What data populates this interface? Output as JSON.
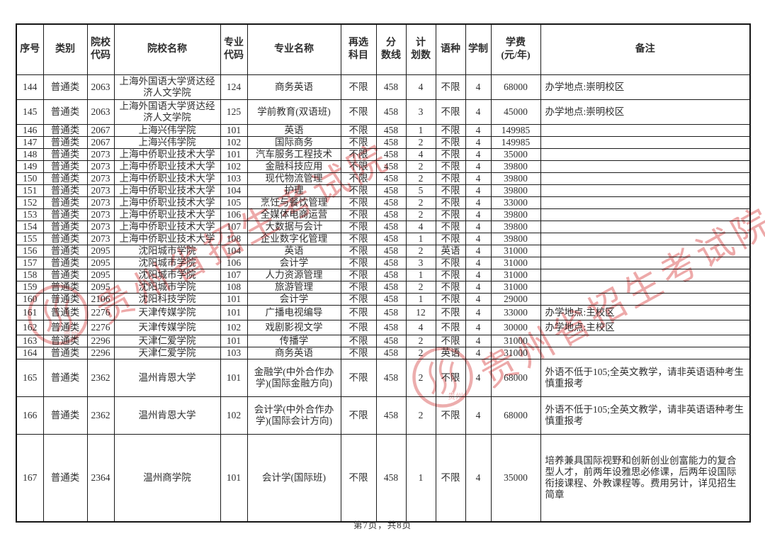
{
  "document": {
    "footer": {
      "page_indicator": "第7页，共8页"
    },
    "watermark": {
      "text": "贵州省招生考试院",
      "seal_label": "贵州",
      "color": "#dd5a5a"
    }
  },
  "table": {
    "headers": [
      "序号",
      "类别",
      "院校\n代码",
      "院校名称",
      "专业\n代码",
      "专业名称",
      "再选\n科目",
      "分\n数线",
      "计\n划数",
      "语种",
      "学制",
      "学费\n(元/年)",
      "备注"
    ],
    "rows": [
      [
        "144",
        "普通类",
        "2063",
        "上海外国语大学贤达经济人文学院",
        "124",
        "商务英语",
        "不限",
        "458",
        "4",
        "不限",
        "4",
        "68000",
        "办学地点:崇明校区"
      ],
      [
        "145",
        "普通类",
        "2063",
        "上海外国语大学贤达经济人文学院",
        "125",
        "学前教育(双语班)",
        "不限",
        "458",
        "3",
        "不限",
        "4",
        "45000",
        "办学地点:崇明校区"
      ],
      [
        "146",
        "普通类",
        "2067",
        "上海兴伟学院",
        "101",
        "英语",
        "不限",
        "458",
        "1",
        "不限",
        "4",
        "149985",
        ""
      ],
      [
        "147",
        "普通类",
        "2067",
        "上海兴伟学院",
        "102",
        "国际商务",
        "不限",
        "458",
        "2",
        "不限",
        "4",
        "149985",
        ""
      ],
      [
        "148",
        "普通类",
        "2073",
        "上海中侨职业技术大学",
        "101",
        "汽车服务工程技术",
        "不限",
        "458",
        "4",
        "不限",
        "4",
        "35000",
        ""
      ],
      [
        "149",
        "普通类",
        "2073",
        "上海中侨职业技术大学",
        "102",
        "金融科技应用",
        "不限",
        "458",
        "2",
        "不限",
        "4",
        "39800",
        ""
      ],
      [
        "150",
        "普通类",
        "2073",
        "上海中侨职业技术大学",
        "103",
        "现代物流管理",
        "不限",
        "458",
        "2",
        "不限",
        "4",
        "39800",
        ""
      ],
      [
        "151",
        "普通类",
        "2073",
        "上海中侨职业技术大学",
        "104",
        "护理",
        "不限",
        "458",
        "5",
        "不限",
        "4",
        "39800",
        ""
      ],
      [
        "152",
        "普通类",
        "2073",
        "上海中侨职业技术大学",
        "105",
        "烹饪与餐饮管理",
        "不限",
        "458",
        "2",
        "不限",
        "4",
        "33000",
        ""
      ],
      [
        "153",
        "普通类",
        "2073",
        "上海中侨职业技术大学",
        "106",
        "全媒体电商运营",
        "不限",
        "458",
        "2",
        "不限",
        "4",
        "39800",
        ""
      ],
      [
        "154",
        "普通类",
        "2073",
        "上海中侨职业技术大学",
        "107",
        "大数据与会计",
        "不限",
        "458",
        "4",
        "不限",
        "4",
        "39800",
        ""
      ],
      [
        "155",
        "普通类",
        "2073",
        "上海中侨职业技术大学",
        "108",
        "企业数字化管理",
        "不限",
        "458",
        "1",
        "不限",
        "4",
        "39800",
        ""
      ],
      [
        "156",
        "普通类",
        "2095",
        "沈阳城市学院",
        "104",
        "英语",
        "不限",
        "458",
        "2",
        "英语",
        "4",
        "31000",
        ""
      ],
      [
        "157",
        "普通类",
        "2095",
        "沈阳城市学院",
        "106",
        "会计学",
        "不限",
        "458",
        "3",
        "不限",
        "4",
        "31000",
        ""
      ],
      [
        "158",
        "普通类",
        "2095",
        "沈阳城市学院",
        "107",
        "人力资源管理",
        "不限",
        "458",
        "1",
        "不限",
        "4",
        "31000",
        ""
      ],
      [
        "159",
        "普通类",
        "2095",
        "沈阳城市学院",
        "108",
        "旅游管理",
        "不限",
        "458",
        "2",
        "不限",
        "4",
        "31000",
        ""
      ],
      [
        "160",
        "普通类",
        "2106",
        "沈阳科技学院",
        "101",
        "会计学",
        "不限",
        "458",
        "1",
        "不限",
        "4",
        "29000",
        ""
      ],
      [
        "161",
        "普通类",
        "2276",
        "天津传媒学院",
        "101",
        "广播电视编导",
        "不限",
        "458",
        "12",
        "不限",
        "4",
        "33000",
        "办学地点:主校区"
      ],
      [
        "162",
        "普通类",
        "2276",
        "天津传媒学院",
        "102",
        "戏剧影视文学",
        "不限",
        "458",
        "4",
        "不限",
        "4",
        "30000",
        "办学地点:主校区"
      ],
      [
        "163",
        "普通类",
        "2296",
        "天津仁爱学院",
        "101",
        "传播学",
        "不限",
        "458",
        "2",
        "不限",
        "4",
        "31000",
        ""
      ],
      [
        "164",
        "普通类",
        "2296",
        "天津仁爱学院",
        "103",
        "商务英语",
        "不限",
        "458",
        "2",
        "英语",
        "4",
        "31000",
        ""
      ],
      [
        "165",
        "普通类",
        "2362",
        "温州肯恩大学",
        "101",
        "金融学(中外合作办学)(国际金融方向)",
        "不限",
        "458",
        "2",
        "不限",
        "4",
        "68000",
        "外语不低于105;全英文教学，请非英语语种考生慎重报考"
      ],
      [
        "166",
        "普通类",
        "2362",
        "温州肯恩大学",
        "102",
        "会计学(中外合作办学)(国际会计方向)",
        "不限",
        "458",
        "2",
        "不限",
        "4",
        "68000",
        "外语不低于105;全英文教学，请非英语语种考生慎重报考"
      ],
      [
        "167",
        "普通类",
        "2364",
        "温州商学院",
        "101",
        "会计学(国际班)",
        "不限",
        "458",
        "1",
        "不限",
        "4",
        "35000",
        "培养兼具国际视野和创新创业创富能力的复合型人才，前两年设雅思必修课，后两年设国际衔接课程、外教课程等。费用另计，详见招生简章"
      ]
    ]
  }
}
